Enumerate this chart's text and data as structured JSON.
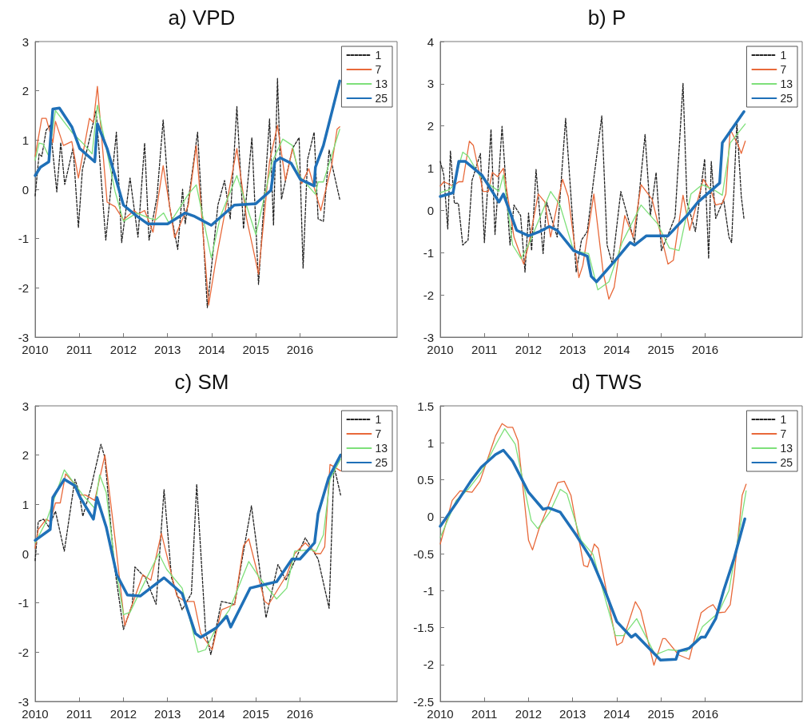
{
  "chart_data": [
    {
      "type": "line",
      "title": "a) VPD",
      "xlim": [
        2010,
        2018.2
      ],
      "xticks": [
        2010,
        2011,
        2012,
        2013,
        2014,
        2015,
        2016
      ],
      "ylim": [
        -3,
        3
      ],
      "yticks": [
        -3,
        -2,
        -1,
        0,
        1,
        2,
        3
      ],
      "legend": "top right",
      "marker": "none",
      "series": [
        {
          "name": "1",
          "color": "#222222",
          "line_style": "dashed",
          "x": [
            2010.0,
            2010.09,
            2010.15,
            2010.25,
            2010.34,
            2010.49,
            2010.58,
            2010.67,
            2010.86,
            2010.98,
            2011.07,
            2011.38,
            2011.6,
            2011.84,
            2011.96,
            2012.15,
            2012.33,
            2012.48,
            2012.58,
            2012.76,
            2012.9,
            2013.04,
            2013.23,
            2013.34,
            2013.4,
            2013.68,
            2013.9,
            2014.14,
            2014.29,
            2014.42,
            2014.57,
            2014.72,
            2014.91,
            2015.06,
            2015.31,
            2015.4,
            2015.49,
            2015.58,
            2015.83,
            2015.98,
            2016.07,
            2016.17,
            2016.32,
            2016.41,
            2016.53,
            2016.66,
            2016.75,
            2016.9
          ],
          "values": [
            -0.13,
            0.72,
            0.67,
            1.2,
            1.3,
            -0.05,
            0.95,
            0.1,
            0.85,
            -0.78,
            0.4,
            1.6,
            -1.03,
            1.16,
            -1.08,
            0.23,
            -0.97,
            0.94,
            -1.03,
            -0.15,
            1.41,
            -0.32,
            -1.22,
            0.0,
            -0.7,
            1.16,
            -2.4,
            -0.32,
            0.18,
            -0.6,
            1.68,
            -0.8,
            1.05,
            -1.93,
            1.43,
            -0.73,
            2.25,
            -0.2,
            0.83,
            1.05,
            -1.6,
            0.6,
            1.16,
            -0.6,
            -0.65,
            0.8,
            0.4,
            -0.2
          ]
        },
        {
          "name": "7",
          "color": "#e8693a",
          "line_style": "solid",
          "x": [
            2010.0,
            2010.15,
            2010.25,
            2010.4,
            2010.46,
            2010.64,
            2010.83,
            2010.98,
            2011.23,
            2011.32,
            2011.41,
            2011.63,
            2011.81,
            2012.0,
            2012.24,
            2012.33,
            2012.48,
            2012.67,
            2012.9,
            2013.16,
            2013.47,
            2013.65,
            2013.93,
            2014.08,
            2014.57,
            2014.79,
            2015.06,
            2015.31,
            2015.49,
            2015.67,
            2015.83,
            2016.04,
            2016.2,
            2016.47,
            2016.72,
            2016.84,
            2016.9
          ],
          "values": [
            0.67,
            1.44,
            1.44,
            0.95,
            1.38,
            0.89,
            0.97,
            0.23,
            1.44,
            1.36,
            2.09,
            -0.26,
            -0.35,
            -0.62,
            -0.43,
            -0.5,
            -0.43,
            -0.87,
            0.48,
            -0.98,
            -0.32,
            0.89,
            -2.35,
            -1.52,
            0.83,
            -0.59,
            -1.72,
            0.56,
            1.3,
            0.18,
            0.83,
            0.12,
            0.42,
            -0.43,
            0.5,
            1.22,
            1.27
          ]
        },
        {
          "name": "13",
          "color": "#7ee07a",
          "line_style": "solid",
          "x": [
            2010.0,
            2010.09,
            2010.18,
            2010.31,
            2010.46,
            2010.83,
            2011.13,
            2011.29,
            2011.41,
            2011.81,
            2012.0,
            2012.3,
            2012.6,
            2012.73,
            2012.91,
            2013.04,
            2013.47,
            2013.65,
            2013.99,
            2014.2,
            2014.57,
            2015.0,
            2015.37,
            2015.61,
            2015.83,
            2015.98,
            2016.35,
            2016.41,
            2016.53,
            2016.9
          ],
          "values": [
            0.59,
            0.94,
            0.92,
            0.67,
            1.6,
            1.16,
            0.89,
            0.72,
            1.71,
            -0.04,
            -0.65,
            -0.48,
            -0.59,
            -0.62,
            -0.48,
            -0.7,
            -0.1,
            0.09,
            -1.39,
            -0.54,
            0.28,
            -0.92,
            0.56,
            1.02,
            0.89,
            0.28,
            -0.1,
            0.15,
            0.15,
            1.22
          ]
        },
        {
          "name": "25",
          "color": "#1f70b8",
          "line_style": "solid",
          "x": [
            2010.0,
            2010.12,
            2010.31,
            2010.4,
            2010.55,
            2010.83,
            2011.01,
            2011.35,
            2011.41,
            2011.63,
            2012.0,
            2012.3,
            2012.55,
            2012.85,
            2013.0,
            2013.4,
            2013.59,
            2013.99,
            2014.51,
            2015.0,
            2015.34,
            2015.43,
            2015.55,
            2015.8,
            2016.01,
            2016.32,
            2016.35,
            2016.53,
            2016.9
          ],
          "values": [
            0.28,
            0.45,
            0.56,
            1.63,
            1.65,
            1.27,
            0.83,
            0.56,
            1.33,
            0.83,
            -0.32,
            -0.54,
            -0.7,
            -0.7,
            -0.7,
            -0.48,
            -0.54,
            -0.73,
            -0.32,
            -0.29,
            -0.02,
            0.56,
            0.64,
            0.53,
            0.2,
            0.07,
            0.45,
            0.89,
            2.2
          ]
        }
      ]
    },
    {
      "type": "line",
      "title": "b) P",
      "xlim": [
        2010,
        2018.2
      ],
      "xticks": [
        2010,
        2011,
        2012,
        2013,
        2014,
        2015,
        2016
      ],
      "ylim": [
        -3,
        4
      ],
      "yticks": [
        -3,
        -2,
        -1,
        0,
        1,
        2,
        3,
        4
      ],
      "legend": "top right",
      "marker": "none",
      "series": [
        {
          "name": "1",
          "color": "#222222",
          "line_style": "dashed",
          "x": [
            2010.0,
            2010.08,
            2010.17,
            2010.23,
            2010.32,
            2010.41,
            2010.51,
            2010.63,
            2010.72,
            2010.91,
            2011.0,
            2011.15,
            2011.24,
            2011.4,
            2011.58,
            2011.67,
            2011.82,
            2011.92,
            2012.0,
            2012.07,
            2012.17,
            2012.33,
            2012.41,
            2012.65,
            2012.84,
            2013.08,
            2013.2,
            2013.33,
            2013.45,
            2013.66,
            2013.78,
            2013.9,
            2014.09,
            2014.24,
            2014.4,
            2014.64,
            2014.76,
            2014.89,
            2015.01,
            2015.19,
            2015.32,
            2015.5,
            2015.59,
            2015.78,
            2015.99,
            2016.08,
            2016.14,
            2016.24,
            2016.42,
            2016.54,
            2016.6,
            2016.72,
            2016.82,
            2016.88
          ],
          "values": [
            1.16,
            0.84,
            -0.44,
            1.41,
            0.17,
            0.17,
            -0.82,
            -0.7,
            0.71,
            1.35,
            -0.76,
            1.92,
            -0.57,
            1.99,
            -0.82,
            0.13,
            -0.12,
            -1.46,
            -0.06,
            -0.95,
            0.97,
            -1.02,
            0.2,
            -0.63,
            2.18,
            -1.46,
            -0.7,
            -0.5,
            0.52,
            2.24,
            -0.82,
            -1.27,
            0.45,
            -0.12,
            -0.76,
            1.8,
            -0.12,
            0.9,
            -0.95,
            -0.5,
            -0.15,
            3.01,
            0.2,
            -0.5,
            1.22,
            -1.14,
            1.16,
            -0.19,
            0.26,
            -0.63,
            -0.76,
            2.08,
            0.33,
            -0.19
          ]
        },
        {
          "name": "7",
          "color": "#e8693a",
          "line_style": "solid",
          "x": [
            2010.0,
            2010.08,
            2010.29,
            2010.42,
            2010.51,
            2010.66,
            2010.75,
            2010.97,
            2011.09,
            2011.18,
            2011.3,
            2011.43,
            2011.67,
            2011.89,
            2012.0,
            2012.22,
            2012.37,
            2012.5,
            2012.77,
            2012.9,
            2013.14,
            2013.23,
            2013.48,
            2013.69,
            2013.82,
            2013.94,
            2014.18,
            2014.37,
            2014.55,
            2014.8,
            2015.16,
            2015.28,
            2015.5,
            2015.65,
            2015.96,
            2016.14,
            2016.24,
            2016.39,
            2016.47,
            2016.57,
            2016.75,
            2016.82,
            2016.91
          ],
          "values": [
            0.58,
            0.68,
            0.58,
            0.68,
            0.68,
            1.64,
            1.54,
            0.45,
            0.45,
            0.9,
            0.8,
            1.0,
            -0.63,
            -1.27,
            -0.82,
            0.39,
            0.2,
            -0.63,
            0.74,
            0.33,
            -1.59,
            -1.3,
            0.39,
            -1.46,
            -2.1,
            -1.82,
            -0.12,
            -0.63,
            0.61,
            0.26,
            -1.27,
            -1.18,
            0.36,
            -0.47,
            0.74,
            0.45,
            0.13,
            0.17,
            0.39,
            1.92,
            1.54,
            1.35,
            1.64
          ]
        },
        {
          "name": "13",
          "color": "#7ee07a",
          "line_style": "solid",
          "x": [
            2010.0,
            2010.2,
            2010.29,
            2010.51,
            2010.63,
            2010.88,
            2011.12,
            2011.33,
            2011.43,
            2011.64,
            2011.83,
            2012.0,
            2012.5,
            2012.71,
            2013.02,
            2013.36,
            2013.57,
            2013.82,
            2014.12,
            2014.55,
            2014.92,
            2015.19,
            2015.41,
            2015.68,
            2015.93,
            2016.2,
            2016.39,
            2016.57,
            2016.91
          ],
          "values": [
            0.42,
            0.49,
            0.58,
            1.38,
            1.29,
            0.84,
            0.61,
            0.45,
            0.84,
            -0.82,
            -1.14,
            -0.82,
            0.45,
            0.13,
            -0.95,
            -1.02,
            -1.88,
            -1.69,
            -0.76,
            0.13,
            -0.31,
            -0.89,
            -0.95,
            0.39,
            0.61,
            0.49,
            0.36,
            1.6,
            2.05
          ]
        },
        {
          "name": "25",
          "color": "#1f70b8",
          "line_style": "solid",
          "x": [
            2010.0,
            2010.29,
            2010.42,
            2010.57,
            2010.94,
            2011.33,
            2011.43,
            2011.73,
            2012.0,
            2012.25,
            2012.47,
            2012.65,
            2013.02,
            2013.33,
            2013.42,
            2013.54,
            2014.0,
            2014.3,
            2014.4,
            2014.67,
            2015.16,
            2015.59,
            2015.84,
            2016.33,
            2016.39,
            2016.88
          ],
          "values": [
            0.33,
            0.42,
            1.16,
            1.16,
            0.84,
            0.2,
            0.39,
            -0.47,
            -0.6,
            -0.5,
            -0.38,
            -0.47,
            -0.95,
            -1.08,
            -1.56,
            -1.69,
            -1.14,
            -0.76,
            -0.82,
            -0.6,
            -0.6,
            -0.12,
            0.2,
            0.65,
            1.6,
            2.34
          ]
        }
      ]
    },
    {
      "type": "line",
      "title": "c) SM",
      "xlim": [
        2010,
        2018.2
      ],
      "xticks": [
        2010,
        2011,
        2012,
        2013,
        2014,
        2015,
        2016
      ],
      "ylim": [
        -3,
        3
      ],
      "yticks": [
        -3,
        -2,
        -1,
        0,
        1,
        2,
        3
      ],
      "legend": "top right",
      "marker": "none",
      "series": [
        {
          "name": "1",
          "color": "#222222",
          "line_style": "dashed",
          "x": [
            2010.0,
            2010.07,
            2010.19,
            2010.31,
            2010.46,
            2010.66,
            2010.9,
            2010.99,
            2011.08,
            2011.26,
            2011.49,
            2011.58,
            2011.79,
            2012.0,
            2012.2,
            2012.26,
            2012.5,
            2012.74,
            2012.92,
            2013.09,
            2013.33,
            2013.54,
            2013.66,
            2013.86,
            2013.98,
            2014.22,
            2014.52,
            2014.69,
            2014.9,
            2015.23,
            2015.5,
            2015.68,
            2016.12,
            2016.41,
            2016.66,
            2016.77,
            2016.92
          ],
          "values": [
            -0.14,
            0.65,
            0.7,
            0.54,
            0.86,
            0.05,
            1.51,
            1.27,
            0.76,
            1.32,
            2.22,
            1.95,
            -0.22,
            -1.54,
            -1.03,
            -0.27,
            -0.49,
            -1.03,
            1.3,
            -0.49,
            -1.14,
            -0.81,
            1.41,
            -1.57,
            -2.05,
            -0.97,
            -1.03,
            -0.11,
            0.97,
            -1.3,
            -0.22,
            -0.54,
            0.32,
            -0.11,
            -1.11,
            1.78,
            1.19
          ]
        },
        {
          "name": "7",
          "color": "#e8693a",
          "line_style": "solid",
          "x": [
            2010.0,
            2010.07,
            2010.25,
            2010.34,
            2010.46,
            2010.57,
            2010.69,
            2010.9,
            2011.02,
            2011.14,
            2011.35,
            2011.58,
            2011.82,
            2012.03,
            2012.2,
            2012.44,
            2012.62,
            2012.86,
            2013.21,
            2013.39,
            2013.6,
            2013.75,
            2014.01,
            2014.22,
            2014.52,
            2014.72,
            2014.84,
            2015.2,
            2015.29,
            2015.7,
            2015.88,
            2016.12,
            2016.36,
            2016.47,
            2016.56,
            2016.68,
            2016.92
          ],
          "values": [
            0.11,
            0.49,
            0.7,
            0.65,
            1.03,
            1.03,
            1.62,
            1.41,
            1.19,
            1.19,
            1.08,
            2.0,
            0.22,
            -1.46,
            -1.03,
            -0.43,
            -0.54,
            0.41,
            -0.86,
            -0.97,
            -0.97,
            -1.62,
            -1.95,
            -1.14,
            -1.03,
            0.16,
            0.3,
            -0.97,
            -1.03,
            -0.43,
            0.0,
            0.22,
            0.0,
            0.0,
            0.14,
            1.81,
            1.68
          ]
        },
        {
          "name": "13",
          "color": "#7ee07a",
          "line_style": "solid",
          "x": [
            2010.0,
            2010.25,
            2010.66,
            2010.9,
            2011.08,
            2011.35,
            2011.46,
            2011.61,
            2011.79,
            2012.0,
            2012.15,
            2012.38,
            2012.8,
            2012.98,
            2013.33,
            2013.69,
            2013.86,
            2014.1,
            2014.4,
            2014.84,
            2015.08,
            2015.47,
            2015.7,
            2015.88,
            2016.24,
            2016.36,
            2016.53,
            2016.68,
            2016.92
          ],
          "values": [
            0.22,
            0.65,
            1.7,
            1.41,
            1.19,
            0.92,
            1.6,
            1.24,
            -0.11,
            -1.24,
            -1.19,
            -0.76,
            0.0,
            -0.32,
            -0.7,
            -2.0,
            -1.95,
            -1.51,
            -1.14,
            -0.16,
            -0.49,
            -0.92,
            -0.7,
            0.05,
            0.08,
            0.05,
            0.38,
            1.51,
            1.92
          ]
        },
        {
          "name": "25",
          "color": "#1f70b8",
          "line_style": "solid",
          "x": [
            2010.0,
            2010.34,
            2010.4,
            2010.66,
            2010.9,
            2011.02,
            2011.32,
            2011.4,
            2011.61,
            2011.85,
            2012.09,
            2012.38,
            2012.92,
            2013.33,
            2013.63,
            2013.75,
            2014.1,
            2014.34,
            2014.43,
            2014.87,
            2015.23,
            2015.47,
            2015.82,
            2016.0,
            2016.33,
            2016.41,
            2016.65,
            2016.92
          ],
          "values": [
            0.27,
            0.49,
            1.14,
            1.51,
            1.38,
            1.14,
            0.7,
            1.14,
            0.54,
            -0.43,
            -0.84,
            -0.86,
            -0.49,
            -0.81,
            -1.62,
            -1.7,
            -1.51,
            -1.27,
            -1.49,
            -0.7,
            -0.62,
            -0.57,
            -0.11,
            -0.11,
            0.22,
            0.81,
            1.54,
            2.0
          ]
        }
      ]
    },
    {
      "type": "line",
      "title": "d) TWS",
      "xlim": [
        2010,
        2018.2
      ],
      "xticks": [
        2010,
        2011,
        2012,
        2013,
        2014,
        2015,
        2016
      ],
      "ylim": [
        -2.5,
        1.5
      ],
      "yticks": [
        -2.5,
        -2,
        -1.5,
        -1,
        -0.5,
        0,
        0.5,
        1,
        1.5
      ],
      "legend": "top right",
      "marker": "none",
      "series": [
        {
          "name": "1",
          "color": "#222222",
          "line_style": "dashed"
        },
        {
          "name": "7",
          "color": "#e8693a",
          "line_style": "solid",
          "x": [
            2010.0,
            2010.27,
            2010.45,
            2010.72,
            2010.9,
            2011.25,
            2011.4,
            2011.52,
            2011.64,
            2011.76,
            2012.0,
            2012.09,
            2012.24,
            2012.66,
            2012.81,
            2012.96,
            2013.25,
            2013.34,
            2013.49,
            2013.58,
            2014.0,
            2014.12,
            2014.42,
            2014.54,
            2014.84,
            2015.04,
            2015.1,
            2015.4,
            2015.64,
            2015.91,
            2016.06,
            2016.18,
            2016.3,
            2016.45,
            2016.57,
            2016.66,
            2016.84,
            2016.93
          ],
          "values": [
            -0.37,
            0.22,
            0.35,
            0.33,
            0.48,
            1.09,
            1.26,
            1.21,
            1.21,
            1.03,
            -0.32,
            -0.45,
            -0.16,
            0.46,
            0.48,
            0.29,
            -0.66,
            -0.68,
            -0.37,
            -0.43,
            -1.74,
            -1.7,
            -1.15,
            -1.27,
            -2.01,
            -1.65,
            -1.65,
            -1.87,
            -1.93,
            -1.3,
            -1.23,
            -1.19,
            -1.3,
            -1.29,
            -1.19,
            -0.79,
            0.29,
            0.44
          ]
        },
        {
          "name": "13",
          "color": "#7ee07a",
          "line_style": "solid",
          "x": [
            2010.0,
            2010.36,
            2010.63,
            2010.93,
            2011.28,
            2011.46,
            2011.7,
            2012.06,
            2012.21,
            2012.48,
            2012.72,
            2012.87,
            2013.19,
            2013.46,
            2013.97,
            2014.15,
            2014.45,
            2014.87,
            2015.16,
            2015.58,
            2015.79,
            2015.94,
            2016.3,
            2016.54,
            2016.72,
            2016.93
          ],
          "values": [
            -0.28,
            0.22,
            0.37,
            0.6,
            1.0,
            1.19,
            0.98,
            -0.05,
            -0.16,
            0.06,
            0.37,
            0.31,
            -0.32,
            -0.51,
            -1.61,
            -1.61,
            -1.38,
            -1.87,
            -1.8,
            -1.82,
            -1.68,
            -1.49,
            -1.3,
            -1.0,
            -0.39,
            0.35
          ]
        },
        {
          "name": "25",
          "color": "#1f70b8",
          "line_style": "solid",
          "x": [
            2010.0,
            2010.36,
            2010.69,
            2010.93,
            2011.25,
            2011.43,
            2011.64,
            2012.0,
            2012.33,
            2012.45,
            2012.72,
            2013.07,
            2013.43,
            2013.73,
            2014.0,
            2014.33,
            2014.42,
            2014.99,
            2015.34,
            2015.4,
            2015.64,
            2015.91,
            2016.0,
            2016.24,
            2016.42,
            2016.66,
            2016.9
          ],
          "values": [
            -0.13,
            0.18,
            0.48,
            0.67,
            0.84,
            0.9,
            0.75,
            0.33,
            0.1,
            0.12,
            0.06,
            -0.24,
            -0.58,
            -1.0,
            -1.42,
            -1.63,
            -1.59,
            -1.94,
            -1.93,
            -1.82,
            -1.78,
            -1.63,
            -1.63,
            -1.38,
            -1.0,
            -0.56,
            -0.03
          ]
        }
      ]
    }
  ]
}
